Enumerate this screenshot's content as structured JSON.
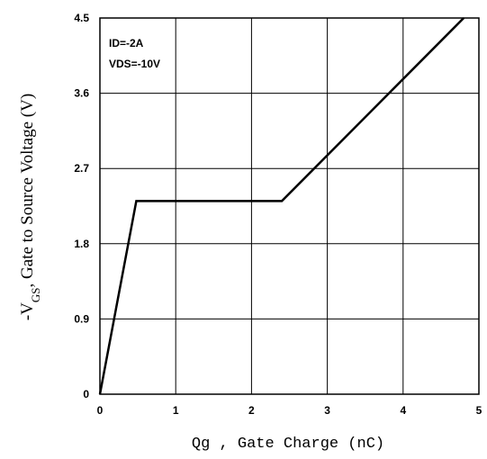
{
  "chart_data": {
    "type": "line",
    "xlabel": "Qg , Gate Charge (nC)",
    "ylabel_prefix": "-V",
    "ylabel_subscript": "GS",
    "ylabel_suffix": ", Gate to Source Voltage (V)",
    "xlim": [
      0,
      5
    ],
    "ylim": [
      0,
      4.5
    ],
    "xticks": [
      0,
      1,
      2,
      3,
      4,
      5
    ],
    "ytick_labels": [
      "0",
      "0.9",
      "1.8",
      "2.7",
      "3.6",
      "4.5"
    ],
    "yticks": [
      0,
      0.9,
      1.8,
      2.7,
      3.6,
      4.5
    ],
    "grid": true,
    "annotations": [
      "ID=-2A",
      "VDS=-10V"
    ],
    "series": [
      {
        "x": [
          0,
          0.48,
          2.4,
          4.8
        ],
        "y": [
          0,
          2.31,
          2.31,
          4.5
        ]
      }
    ]
  }
}
